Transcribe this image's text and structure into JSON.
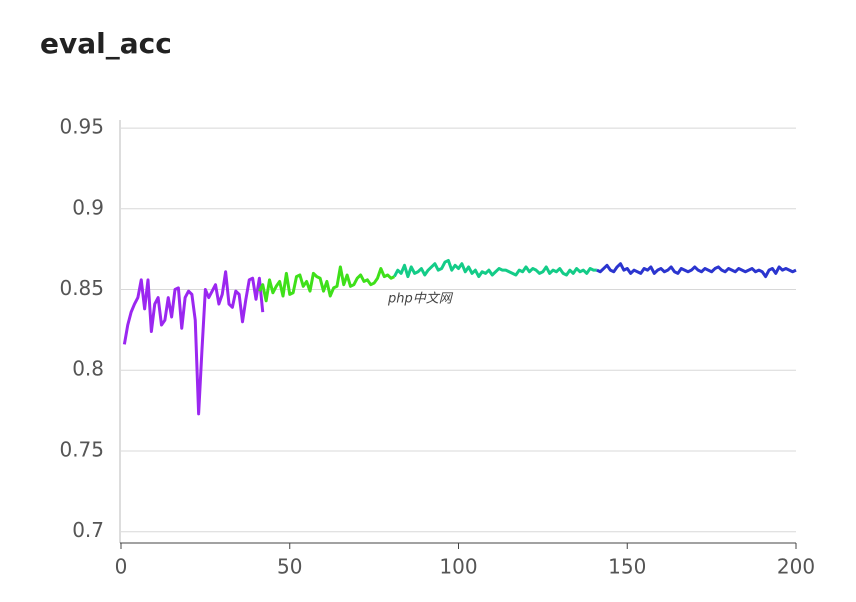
{
  "chart_data": {
    "type": "line",
    "title": "eval_acc",
    "watermark": "php中文网",
    "xlim": [
      0,
      200
    ],
    "xticks": [
      0,
      50,
      100,
      150,
      200
    ],
    "ylim": [
      0.693,
      0.955
    ],
    "yticks": [
      0.7,
      0.75,
      0.8,
      0.85,
      0.9,
      0.95
    ],
    "grid": true,
    "series": [
      {
        "color": "#9b27f0",
        "x": [
          1,
          2,
          3,
          4,
          5,
          6,
          7,
          8,
          9,
          10,
          11,
          12,
          13,
          14,
          15,
          16,
          17,
          18,
          19,
          20,
          21,
          22,
          23,
          24,
          25,
          26,
          27,
          28,
          29,
          30,
          31,
          32,
          33,
          34,
          35,
          36,
          37,
          38,
          39,
          40,
          41,
          42
        ],
        "values": [
          0.816,
          0.828,
          0.836,
          0.841,
          0.845,
          0.856,
          0.838,
          0.856,
          0.824,
          0.841,
          0.845,
          0.828,
          0.831,
          0.845,
          0.833,
          0.85,
          0.851,
          0.826,
          0.845,
          0.849,
          0.847,
          0.831,
          0.773,
          0.813,
          0.85,
          0.845,
          0.849,
          0.853,
          0.841,
          0.847,
          0.861,
          0.841,
          0.839,
          0.849,
          0.847,
          0.83,
          0.844,
          0.856,
          0.857,
          0.844,
          0.857,
          0.836
        ]
      },
      {
        "color": "#3fe01a",
        "x": [
          41,
          42,
          43,
          44,
          45,
          46,
          47,
          48,
          49,
          50,
          51,
          52,
          53,
          54,
          55,
          56,
          57,
          58,
          59,
          60,
          61,
          62,
          63,
          64,
          65,
          66,
          67,
          68,
          69,
          70,
          71,
          72,
          73,
          74,
          75,
          76,
          77,
          78,
          79,
          80,
          81
        ],
        "values": [
          0.849,
          0.853,
          0.843,
          0.856,
          0.848,
          0.852,
          0.855,
          0.846,
          0.86,
          0.847,
          0.848,
          0.858,
          0.859,
          0.852,
          0.855,
          0.849,
          0.86,
          0.858,
          0.857,
          0.849,
          0.855,
          0.846,
          0.851,
          0.852,
          0.864,
          0.853,
          0.859,
          0.852,
          0.853,
          0.857,
          0.859,
          0.855,
          0.856,
          0.853,
          0.854,
          0.857,
          0.863,
          0.858,
          0.859,
          0.857,
          0.858
        ]
      },
      {
        "color": "#14cc88",
        "x": [
          81,
          82,
          83,
          84,
          85,
          86,
          87,
          88,
          89,
          90,
          91,
          92,
          93,
          94,
          95,
          96,
          97,
          98,
          99,
          100,
          101,
          102,
          103,
          104,
          105,
          106,
          107,
          108,
          109,
          110,
          111,
          112,
          113,
          114,
          115,
          116,
          117,
          118,
          119,
          120,
          121,
          122,
          123,
          124,
          125,
          126,
          127,
          128,
          129,
          130,
          131,
          132,
          133,
          134,
          135,
          136,
          137,
          138,
          139,
          140,
          141
        ],
        "values": [
          0.858,
          0.862,
          0.86,
          0.865,
          0.858,
          0.864,
          0.86,
          0.861,
          0.863,
          0.859,
          0.862,
          0.864,
          0.866,
          0.862,
          0.863,
          0.867,
          0.868,
          0.862,
          0.865,
          0.863,
          0.866,
          0.861,
          0.864,
          0.86,
          0.862,
          0.858,
          0.861,
          0.86,
          0.862,
          0.859,
          0.861,
          0.863,
          0.862,
          0.862,
          0.861,
          0.86,
          0.859,
          0.862,
          0.861,
          0.864,
          0.861,
          0.863,
          0.862,
          0.86,
          0.861,
          0.864,
          0.86,
          0.862,
          0.861,
          0.863,
          0.86,
          0.859,
          0.862,
          0.86,
          0.863,
          0.861,
          0.862,
          0.86,
          0.863,
          0.862,
          0.862
        ]
      },
      {
        "color": "#2b35cf",
        "x": [
          141,
          142,
          143,
          144,
          145,
          146,
          147,
          148,
          149,
          150,
          151,
          152,
          153,
          154,
          155,
          156,
          157,
          158,
          159,
          160,
          161,
          162,
          163,
          164,
          165,
          166,
          167,
          168,
          169,
          170,
          171,
          172,
          173,
          174,
          175,
          176,
          177,
          178,
          179,
          180,
          181,
          182,
          183,
          184,
          185,
          186,
          187,
          188,
          189,
          190,
          191,
          192,
          193,
          194,
          195,
          196,
          197,
          198,
          199,
          200
        ],
        "values": [
          0.862,
          0.861,
          0.863,
          0.865,
          0.862,
          0.861,
          0.864,
          0.866,
          0.862,
          0.863,
          0.86,
          0.862,
          0.861,
          0.86,
          0.863,
          0.862,
          0.864,
          0.86,
          0.862,
          0.863,
          0.861,
          0.862,
          0.864,
          0.861,
          0.86,
          0.863,
          0.862,
          0.861,
          0.862,
          0.864,
          0.862,
          0.861,
          0.863,
          0.862,
          0.861,
          0.863,
          0.864,
          0.862,
          0.861,
          0.863,
          0.862,
          0.861,
          0.863,
          0.862,
          0.861,
          0.862,
          0.863,
          0.861,
          0.862,
          0.861,
          0.858,
          0.862,
          0.863,
          0.86,
          0.864,
          0.862,
          0.863,
          0.862,
          0.861,
          0.862
        ]
      }
    ]
  }
}
